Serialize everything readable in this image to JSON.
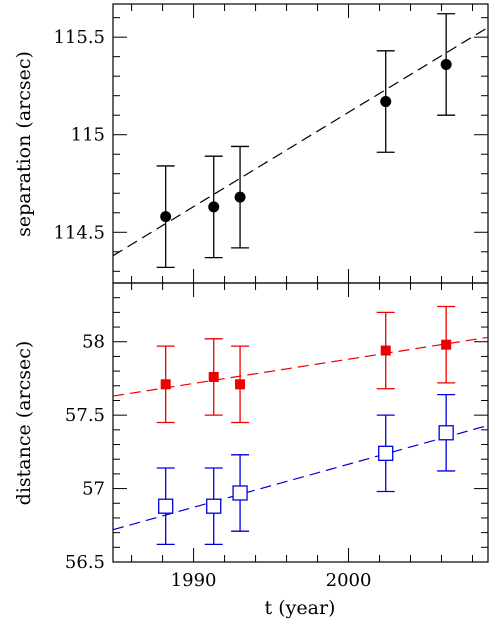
{
  "figure": {
    "xlabel": "t (year)",
    "x_ticks": [
      1990,
      2000
    ],
    "xlim": [
      1984.8,
      2009.0
    ]
  },
  "chart_data": [
    {
      "type": "scatter",
      "panel": "top",
      "ylabel": "separation (arcsec)",
      "xlim": [
        1984.8,
        2009.0
      ],
      "ylim": [
        114.24,
        115.67
      ],
      "y_ticks": [
        114.5,
        115,
        115.5
      ],
      "y_tick_labels": [
        "114.5",
        "115",
        "115.5"
      ],
      "grid": false,
      "series": [
        {
          "marker": "filled-circle",
          "color": "#000000",
          "points": [
            {
              "x": 1988.2,
              "y": 114.58,
              "err": 0.26
            },
            {
              "x": 1991.3,
              "y": 114.63,
              "err": 0.26
            },
            {
              "x": 1993.0,
              "y": 114.68,
              "err": 0.26
            },
            {
              "x": 2002.4,
              "y": 115.17,
              "err": 0.26
            },
            {
              "x": 2006.3,
              "y": 115.36,
              "err": 0.26
            }
          ],
          "fit": {
            "x": [
              1984.8,
              2009.0
            ],
            "y": [
              114.38,
              115.55
            ],
            "color": "#000000"
          }
        }
      ]
    },
    {
      "type": "scatter",
      "panel": "bottom",
      "ylabel": "distance (arcsec)",
      "xlim": [
        1984.8,
        2009.0
      ],
      "ylim": [
        56.5,
        58.4
      ],
      "y_ticks": [
        56.5,
        57,
        57.5,
        58
      ],
      "y_tick_labels": [
        "56.5",
        "57",
        "57.5",
        "58"
      ],
      "grid": false,
      "series": [
        {
          "marker": "filled-square",
          "color": "#ee0000",
          "points": [
            {
              "x": 1988.2,
              "y": 57.71,
              "err": 0.26
            },
            {
              "x": 1991.3,
              "y": 57.76,
              "err": 0.26
            },
            {
              "x": 1993.0,
              "y": 57.71,
              "err": 0.26
            },
            {
              "x": 2002.4,
              "y": 57.94,
              "err": 0.26
            },
            {
              "x": 2006.3,
              "y": 57.98,
              "err": 0.26
            }
          ],
          "fit": {
            "x": [
              1984.8,
              2009.0
            ],
            "y": [
              57.63,
              58.03
            ],
            "color": "#ee0000"
          }
        },
        {
          "marker": "open-square",
          "color": "#0000dd",
          "points": [
            {
              "x": 1988.2,
              "y": 56.88,
              "err": 0.26
            },
            {
              "x": 1991.3,
              "y": 56.88,
              "err": 0.26
            },
            {
              "x": 1993.0,
              "y": 56.97,
              "err": 0.26
            },
            {
              "x": 2002.4,
              "y": 57.24,
              "err": 0.26
            },
            {
              "x": 2006.3,
              "y": 57.38,
              "err": 0.26
            }
          ],
          "fit": {
            "x": [
              1984.8,
              2009.0
            ],
            "y": [
              56.72,
              57.43
            ],
            "color": "#0000dd"
          }
        }
      ]
    }
  ]
}
